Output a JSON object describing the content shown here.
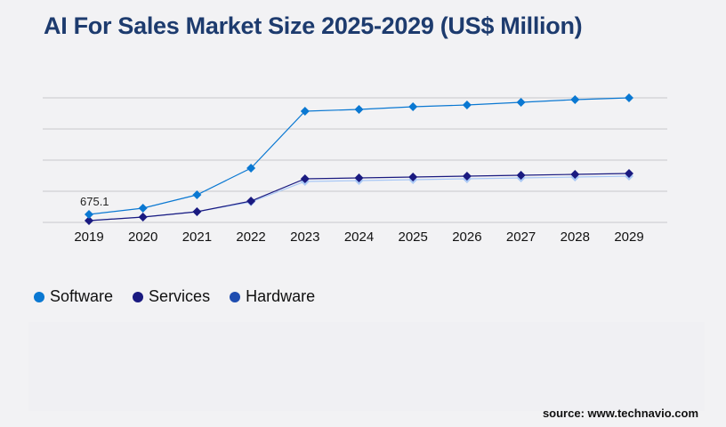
{
  "title": "AI For Sales Market Size 2025-2029 (US$ Million)",
  "source": "source: www.technavio.com",
  "chart_data": {
    "type": "line",
    "title": "AI For Sales Market Size 2025-2029 (US$ Million)",
    "categories": [
      "2019",
      "2020",
      "2021",
      "2022",
      "2023",
      "2024",
      "2025",
      "2026",
      "2027",
      "2028",
      "2029"
    ],
    "ylim": [
      0,
      10500
    ],
    "grid": true,
    "legend": "bottom-left",
    "series": [
      {
        "name": "Software",
        "color": "#0a78d2",
        "values": [
          675.1,
          1200,
          2325,
          4575,
          9375,
          9525,
          9750,
          9900,
          10125,
          10350,
          10500
        ]
      },
      {
        "name": "Services",
        "color": "#1a1a80",
        "values": [
          150,
          450,
          900,
          1800,
          3675,
          3750,
          3825,
          3900,
          3975,
          4050,
          4125
        ]
      },
      {
        "name": "Hardware",
        "color": "#a9c8f5",
        "legend_color": "#1f4db0",
        "values": [
          150,
          450,
          900,
          1725,
          3450,
          3525,
          3600,
          3675,
          3750,
          3825,
          3900
        ]
      }
    ],
    "data_labels": [
      {
        "series": "Software",
        "category": "2019",
        "text": "675.1"
      }
    ]
  }
}
